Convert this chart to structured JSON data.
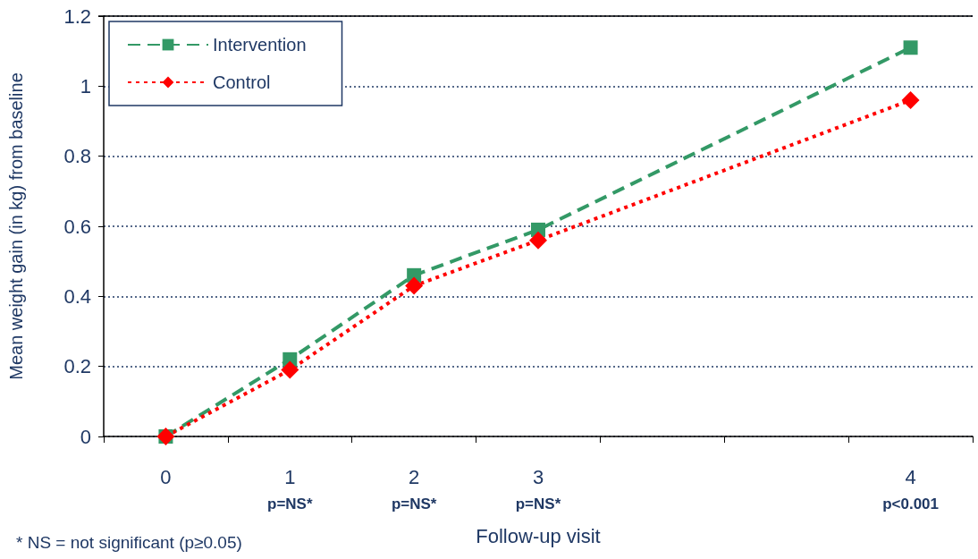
{
  "chart_data": {
    "type": "line",
    "xlabel": "Follow-up visit",
    "ylabel": "Mean weight gain (in kg) from baseline",
    "categories": [
      "0",
      "1\np=NS*",
      "2\np=NS*",
      "3\np=NS*",
      null,
      null,
      "4\np<0.001"
    ],
    "series": [
      {
        "name": "Intervention",
        "color": "#339966",
        "marker": "square",
        "line_style": "dashed",
        "values": [
          0,
          0.22,
          0.46,
          0.59,
          null,
          null,
          1.11
        ]
      },
      {
        "name": "Control",
        "color": "#ff0000",
        "marker": "diamond",
        "line_style": "dotted",
        "values": [
          0,
          0.19,
          0.43,
          0.56,
          null,
          null,
          0.96
        ]
      }
    ],
    "ylim": [
      0,
      1.2
    ],
    "yticks": [
      0,
      0.2,
      0.4,
      0.6,
      0.8,
      1,
      1.2
    ],
    "grid": "y",
    "legend": "top left",
    "annotations": [
      "* NS = not significant (p≥0.05)"
    ]
  }
}
